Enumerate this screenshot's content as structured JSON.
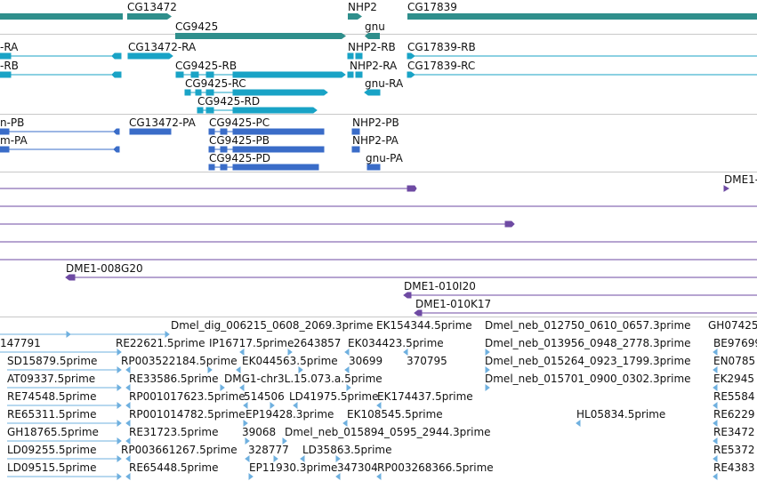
{
  "colors": {
    "gene": "#2f8f8c",
    "mrna": "#19a3c6",
    "protein": "#3a6cc8",
    "clone": "#6e4aa3",
    "est": "#6fb0df",
    "separator": "#c8c8c8"
  },
  "tracks": {
    "genes": [
      {
        "label": "CG13472"
      },
      {
        "label": "CG9425"
      },
      {
        "label": "NHP2"
      },
      {
        "label": "gnu"
      },
      {
        "label": "CG17839"
      }
    ],
    "transcripts": [
      {
        "label": "-RA"
      },
      {
        "label": "-RB"
      },
      {
        "label": "CG13472-RA"
      },
      {
        "label": "CG9425-RB"
      },
      {
        "label": "CG9425-RC"
      },
      {
        "label": "CG9425-RD"
      },
      {
        "label": "NHP2-RB"
      },
      {
        "label": "NHP2-RA"
      },
      {
        "label": "gnu-RA"
      },
      {
        "label": "CG17839-RB"
      },
      {
        "label": "CG17839-RC"
      }
    ],
    "proteins": [
      {
        "label": "n-PB"
      },
      {
        "label": "m-PA"
      },
      {
        "label": "CG13472-PA"
      },
      {
        "label": "CG9425-PC"
      },
      {
        "label": "CG9425-PB"
      },
      {
        "label": "CG9425-PD"
      },
      {
        "label": "NHP2-PB"
      },
      {
        "label": "NHP2-PA"
      },
      {
        "label": "gnu-PA"
      }
    ],
    "clones": [
      {
        "label": "DME1-"
      },
      {
        "label": "DME1-008G20"
      },
      {
        "label": "DME1-010I20"
      },
      {
        "label": "DME1-010K17"
      }
    ],
    "ests": [
      {
        "label": "Dmel_dig_006215_0608_2069.3prime"
      },
      {
        "label": "EK154344.5prime"
      },
      {
        "label": "Dmel_neb_012750_0610_0657.3prime"
      },
      {
        "label": "GH07425"
      },
      {
        "label": "147791"
      },
      {
        "label": "RE22621.5prime"
      },
      {
        "label": "IP16717.5prime"
      },
      {
        "label": "2643857"
      },
      {
        "label": "EK034423.5prime"
      },
      {
        "label": "Dmel_neb_013956_0948_2778.3prime"
      },
      {
        "label": "BE97699"
      },
      {
        "label": "SD15879.5prime"
      },
      {
        "label": "RP003522184.5prime"
      },
      {
        "label": "EK044563.5prime"
      },
      {
        "label": "30699"
      },
      {
        "label": "370795"
      },
      {
        "label": "Dmel_neb_015264_0923_1799.3prime"
      },
      {
        "label": "EN0785"
      },
      {
        "label": "AT09337.5prime"
      },
      {
        "label": "RE33586.5prime"
      },
      {
        "label": "DMG1-chr3L.15.073.a.5prime"
      },
      {
        "label": "Dmel_neb_015701_0900_0302.3prime"
      },
      {
        "label": "EK2945"
      },
      {
        "label": "RE74548.5prime"
      },
      {
        "label": "RP001017623.5prime"
      },
      {
        "label": "514506"
      },
      {
        "label": "LD41975.5prime"
      },
      {
        "label": "EK174437.5prime"
      },
      {
        "label": "RE5584"
      },
      {
        "label": "RE65311.5prime"
      },
      {
        "label": "RP001014782.5prime"
      },
      {
        "label": "EP19428.3prime"
      },
      {
        "label": "EK108545.5prime"
      },
      {
        "label": "HL05834.5prime"
      },
      {
        "label": "RE6229"
      },
      {
        "label": "GH18765.5prime"
      },
      {
        "label": "RE31723.5prime"
      },
      {
        "label": "39068"
      },
      {
        "label": "Dmel_neb_015894_0595_2944.3prime"
      },
      {
        "label": "RE3472"
      },
      {
        "label": "LD09255.5prime"
      },
      {
        "label": "RP003661267.5prime"
      },
      {
        "label": "328777"
      },
      {
        "label": "LD35863.5prime"
      },
      {
        "label": "RE5372"
      },
      {
        "label": "LD09515.5prime"
      },
      {
        "label": "RE65448.5prime"
      },
      {
        "label": "EP11930.3prime"
      },
      {
        "label": "347304"
      },
      {
        "label": "RP003268366.5prime"
      },
      {
        "label": "RE4383"
      }
    ]
  }
}
